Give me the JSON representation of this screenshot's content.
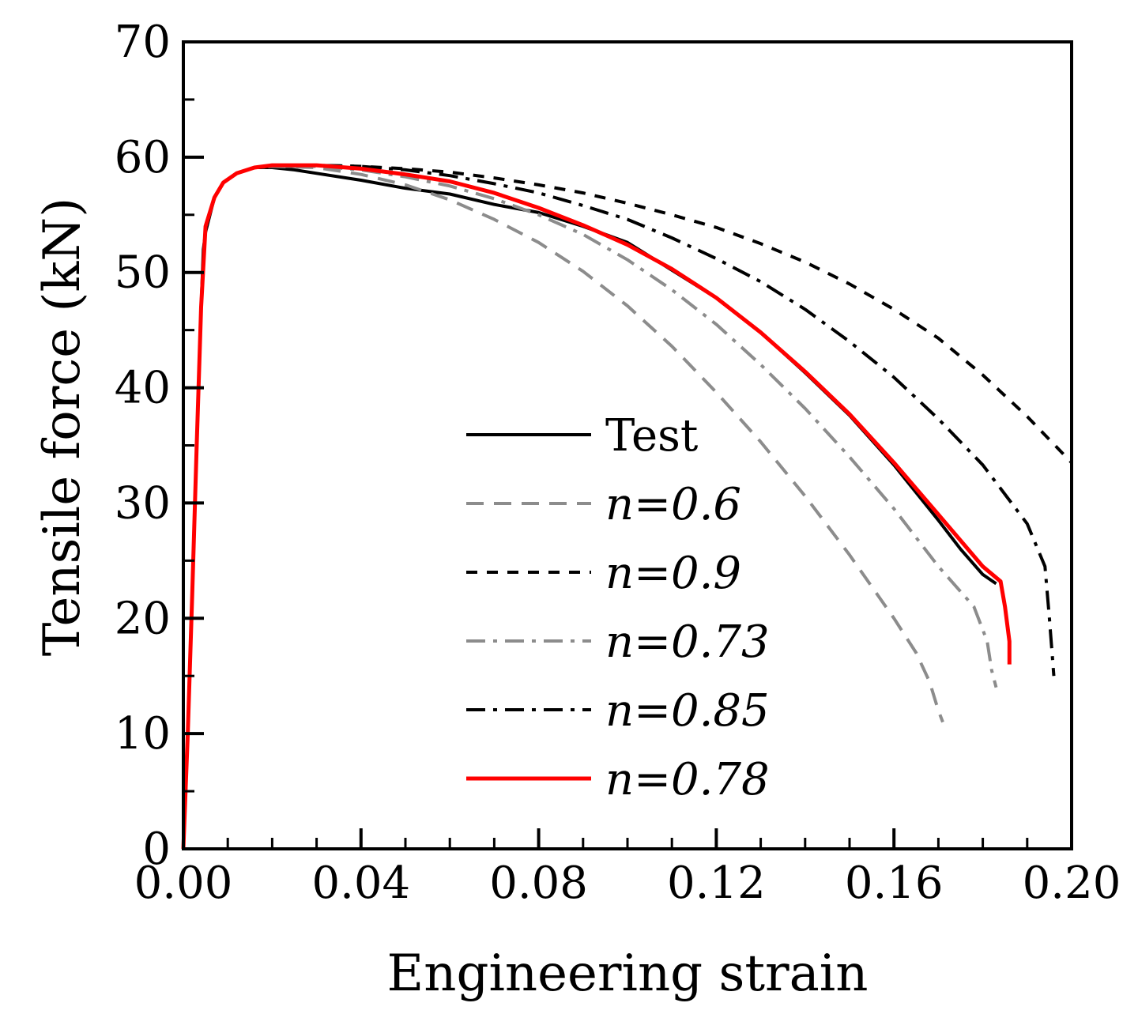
{
  "chart_data": {
    "type": "line",
    "title": "",
    "xlabel": "Engineering strain",
    "ylabel": "Tensile force (kN)",
    "xlim": [
      0,
      0.2
    ],
    "ylim": [
      0,
      70
    ],
    "xticks": [
      "0.00",
      "0.04",
      "0.08",
      "0.12",
      "0.16",
      "0.20"
    ],
    "yticks": [
      "0",
      "10",
      "20",
      "30",
      "40",
      "50",
      "60",
      "70"
    ],
    "grid": false,
    "legend_position": "lower-center",
    "series": [
      {
        "name": "Test",
        "color": "#000000",
        "dash": "solid",
        "x": [
          0,
          0.001,
          0.002,
          0.003,
          0.004,
          0.0045,
          0.005,
          0.006,
          0.007,
          0.009,
          0.012,
          0.016,
          0.02,
          0.025,
          0.03,
          0.04,
          0.05,
          0.06,
          0.07,
          0.08,
          0.09,
          0.1,
          0.11,
          0.12,
          0.13,
          0.14,
          0.15,
          0.16,
          0.17,
          0.175,
          0.18,
          0.183
        ],
        "y": [
          0,
          10,
          22,
          35,
          47,
          52,
          53.5,
          55,
          56.5,
          57.8,
          58.6,
          59.1,
          59.1,
          58.9,
          58.6,
          58,
          57.3,
          56.8,
          55.9,
          55.2,
          54,
          52.6,
          50.2,
          47.8,
          44.8,
          41.3,
          37.6,
          33.3,
          28.5,
          26,
          23.8,
          23
        ]
      },
      {
        "name": "n=0.6",
        "color": "#8c8c8c",
        "dash": "long-dash",
        "x": [
          0,
          0.001,
          0.002,
          0.003,
          0.004,
          0.005,
          0.007,
          0.009,
          0.012,
          0.016,
          0.02,
          0.03,
          0.04,
          0.05,
          0.06,
          0.07,
          0.08,
          0.09,
          0.1,
          0.11,
          0.12,
          0.13,
          0.14,
          0.15,
          0.16,
          0.165,
          0.168,
          0.17,
          0.171
        ],
        "y": [
          0,
          10,
          22,
          35,
          47,
          54,
          56.5,
          57.8,
          58.6,
          59.1,
          59.2,
          59.1,
          58.5,
          57.6,
          56.3,
          54.6,
          52.6,
          50.1,
          47.1,
          43.6,
          39.6,
          35.3,
          30.6,
          25.5,
          20,
          17,
          14.5,
          12,
          11
        ]
      },
      {
        "name": "n=0.9",
        "color": "#000000",
        "dash": "dash",
        "x": [
          0,
          0.001,
          0.002,
          0.003,
          0.004,
          0.005,
          0.007,
          0.009,
          0.012,
          0.016,
          0.02,
          0.03,
          0.04,
          0.05,
          0.06,
          0.07,
          0.08,
          0.09,
          0.1,
          0.11,
          0.12,
          0.13,
          0.14,
          0.15,
          0.16,
          0.17,
          0.18,
          0.19,
          0.2
        ],
        "y": [
          0,
          10,
          22,
          35,
          47,
          54,
          56.5,
          57.8,
          58.6,
          59.1,
          59.3,
          59.3,
          59.2,
          59,
          58.7,
          58.2,
          57.6,
          56.9,
          56,
          55,
          53.9,
          52.5,
          50.9,
          49,
          46.8,
          44.3,
          41.1,
          37.5,
          33.5
        ]
      },
      {
        "name": "n=0.73",
        "color": "#8c8c8c",
        "dash": "dash-dot",
        "x": [
          0,
          0.001,
          0.002,
          0.003,
          0.004,
          0.005,
          0.007,
          0.009,
          0.012,
          0.016,
          0.02,
          0.03,
          0.04,
          0.05,
          0.06,
          0.07,
          0.08,
          0.09,
          0.1,
          0.11,
          0.12,
          0.13,
          0.14,
          0.15,
          0.16,
          0.17,
          0.178,
          0.181,
          0.182,
          0.183
        ],
        "y": [
          0,
          10,
          22,
          35,
          47,
          54,
          56.5,
          57.8,
          58.6,
          59.1,
          59.2,
          59.2,
          58.9,
          58.3,
          57.5,
          56.4,
          55,
          53.3,
          51.1,
          48.5,
          45.5,
          42,
          38.2,
          34,
          29.5,
          24.5,
          21,
          18,
          15.5,
          14
        ]
      },
      {
        "name": "n=0.85",
        "color": "#000000",
        "dash": "dash-dot",
        "x": [
          0,
          0.001,
          0.002,
          0.003,
          0.004,
          0.005,
          0.007,
          0.009,
          0.012,
          0.016,
          0.02,
          0.03,
          0.04,
          0.05,
          0.06,
          0.07,
          0.08,
          0.09,
          0.1,
          0.11,
          0.12,
          0.13,
          0.14,
          0.15,
          0.16,
          0.17,
          0.18,
          0.19,
          0.194,
          0.195,
          0.196
        ],
        "y": [
          0,
          10,
          22,
          35,
          47,
          54,
          56.5,
          57.8,
          58.6,
          59.1,
          59.3,
          59.3,
          59.2,
          58.9,
          58.4,
          57.7,
          56.9,
          55.8,
          54.6,
          53,
          51.2,
          49.2,
          46.8,
          44,
          40.9,
          37.3,
          33.3,
          28.2,
          24.5,
          20,
          15
        ]
      },
      {
        "name": "n=0.78",
        "color": "#ff0000",
        "dash": "solid",
        "x": [
          0,
          0.001,
          0.002,
          0.003,
          0.004,
          0.005,
          0.007,
          0.009,
          0.012,
          0.016,
          0.02,
          0.03,
          0.04,
          0.05,
          0.06,
          0.07,
          0.08,
          0.09,
          0.1,
          0.11,
          0.12,
          0.13,
          0.14,
          0.15,
          0.16,
          0.17,
          0.18,
          0.184,
          0.185,
          0.186,
          0.186
        ],
        "y": [
          0,
          10,
          22,
          35,
          47,
          54,
          56.5,
          57.8,
          58.6,
          59.1,
          59.3,
          59.3,
          59,
          58.5,
          57.9,
          56.9,
          55.6,
          54.1,
          52.4,
          50.3,
          47.8,
          44.8,
          41.4,
          37.7,
          33.5,
          29,
          24.5,
          23.2,
          21,
          18,
          16
        ]
      }
    ]
  }
}
